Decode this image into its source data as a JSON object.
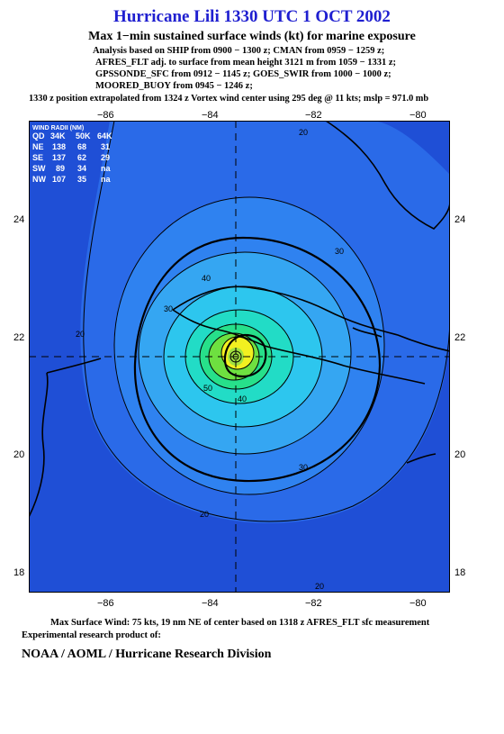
{
  "header": {
    "title": "Hurricane Lili 1330 UTC 1 OCT 2002",
    "subtitle": "Max 1−min sustained surface winds (kt) for marine exposure",
    "analysis_lines": [
      "Analysis based on  SHIP from 0900 − 1300 z;  CMAN from 0959 − 1259 z;",
      "AFRES_FLT adj. to surface from mean height 3121 m from 1059 − 1331 z;",
      "GPSSONDE_SFC from 0912 − 1145 z;  GOES_SWIR from 1000 − 1000 z;",
      "MOORED_BUOY from 0945 − 1246 z;"
    ],
    "position_line": "1330 z position extrapolated from 1324 z Vortex wind center using 295 deg @ 11 kts; mslp = 971.0 mb"
  },
  "map": {
    "lon_ticks": [
      "−86",
      "−84",
      "−82",
      "−80"
    ],
    "lat_ticks": [
      "24",
      "22",
      "20",
      "18"
    ],
    "contour_labels": [
      "20",
      "30",
      "40",
      "50",
      "20",
      "30",
      "40",
      "30",
      "20",
      "20"
    ],
    "colors": {
      "ocean_low": "#1f4fd6",
      "ocean_mid": "#2f7ef0",
      "ring_30": "#3aa0f0",
      "ring_40": "#2fd0e8",
      "ring_50": "#20e0a0",
      "ring_60": "#70e040",
      "ring_70": "#f0f020",
      "land_outline": "#000000"
    }
  },
  "wind_radii": {
    "title": "WIND RADII (NM)",
    "header": [
      "QD",
      "34K",
      "50K",
      "64K"
    ],
    "rows": [
      [
        "NE",
        "138",
        "68",
        "31"
      ],
      [
        "SE",
        "137",
        "62",
        "29"
      ],
      [
        "SW",
        "89",
        "34",
        "na"
      ],
      [
        "NW",
        "107",
        "35",
        "na"
      ]
    ]
  },
  "footer": {
    "max_wind": "Max Surface Wind: 75 kts, 19 nm NE of center based on 1318 z AFRES_FLT sfc measurement",
    "experimental": "Experimental research product of:",
    "organization": "NOAA / AOML / Hurricane Research Division"
  }
}
